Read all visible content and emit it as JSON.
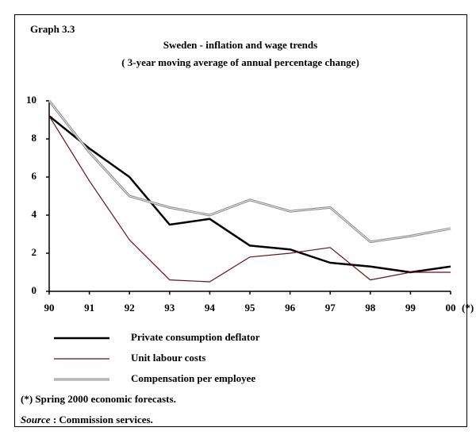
{
  "chart_data": {
    "type": "line",
    "label": "Graph 3.3",
    "title": "Sweden - inflation and wage trends",
    "subtitle": "( 3-year moving average of annual percentage change)",
    "categories": [
      "90",
      "91",
      "92",
      "93",
      "94",
      "95",
      "96",
      "97",
      "98",
      "99",
      "00"
    ],
    "x_note": "(*)",
    "series": [
      {
        "name": "Private consumption deflator",
        "color": "#000000",
        "width": 2.5,
        "values": [
          9.2,
          7.5,
          6.0,
          3.5,
          3.8,
          2.4,
          2.2,
          1.5,
          1.3,
          1.0,
          1.3
        ]
      },
      {
        "name": "Unit labour costs",
        "color": "#6b0f0f",
        "width": 1.2,
        "values": [
          9.2,
          5.8,
          2.7,
          0.6,
          0.5,
          1.8,
          2.0,
          2.3,
          0.6,
          1.0,
          1.0
        ]
      },
      {
        "name": "Compensation per employee",
        "color": "#8c8c8c",
        "width": 3,
        "values": [
          10.0,
          7.3,
          5.0,
          4.4,
          4.0,
          4.8,
          4.2,
          4.4,
          2.6,
          2.9,
          3.3
        ]
      }
    ],
    "ylim": [
      0,
      10
    ],
    "yticks": [
      0,
      2,
      4,
      6,
      8,
      10
    ],
    "grid": false,
    "note": "(*) Spring 2000 economic forecasts.",
    "source_label": "Source",
    "source": " : Commission services."
  }
}
